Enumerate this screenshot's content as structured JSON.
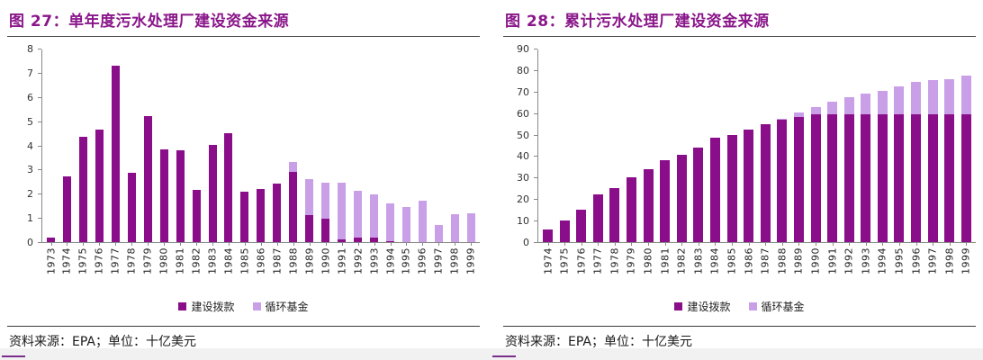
{
  "colors": {
    "grant_dark": "#8a0d8a",
    "fund_light": "#c9a0e8",
    "title_purple": "#8a168a",
    "footer_accent": "#7b2d8b"
  },
  "panels": [
    {
      "title": "图 27：单年度污水处理厂建设资金来源",
      "source": "资料来源：EPA；单位：十亿美元"
    },
    {
      "title": "图 28：累计污水处理厂建设资金来源",
      "source": "资料来源：EPA；单位：十亿美元"
    }
  ],
  "chart_data": [
    {
      "type": "bar",
      "stacked": true,
      "title": "单年度污水处理厂建设资金来源",
      "unit": "十亿美元",
      "source": "EPA",
      "grid": false,
      "legend_position": "bottom",
      "ylim": [
        0,
        8
      ],
      "ytick_step": 1,
      "categories": [
        "1973",
        "1974",
        "1975",
        "1976",
        "1977",
        "1978",
        "1979",
        "1980",
        "1981",
        "1982",
        "1983",
        "1984",
        "1985",
        "1986",
        "1987",
        "1988",
        "1989",
        "1990",
        "1991",
        "1992",
        "1993",
        "1994",
        "1995",
        "1996",
        "1997",
        "1998",
        "1999"
      ],
      "series": [
        {
          "name": "建设拨款",
          "color": "#8a0d8a",
          "values": [
            0.2,
            2.7,
            4.35,
            4.65,
            7.3,
            2.85,
            5.2,
            3.85,
            3.8,
            2.15,
            4.0,
            4.5,
            2.1,
            2.2,
            2.4,
            2.9,
            1.1,
            0.95,
            0.1,
            0.2,
            0.2,
            0.05,
            0,
            0,
            0,
            0,
            0
          ]
        },
        {
          "name": "循环基金",
          "color": "#c9a0e8",
          "values": [
            0,
            0,
            0,
            0,
            0,
            0,
            0,
            0,
            0,
            0,
            0,
            0,
            0,
            0,
            0,
            0.4,
            1.5,
            1.5,
            2.35,
            1.95,
            1.8,
            1.55,
            1.45,
            1.7,
            0.7,
            1.15,
            1.2
          ]
        }
      ]
    },
    {
      "type": "bar",
      "stacked": true,
      "title": "累计污水处理厂建设资金来源",
      "unit": "十亿美元",
      "source": "EPA",
      "grid": false,
      "legend_position": "bottom",
      "ylim": [
        0,
        90
      ],
      "ytick_step": 10,
      "categories": [
        "1974",
        "1975",
        "1976",
        "1977",
        "1978",
        "1979",
        "1980",
        "1981",
        "1982",
        "1983",
        "1984",
        "1985",
        "1986",
        "1987",
        "1988",
        "1989",
        "1990",
        "1991",
        "1992",
        "1993",
        "1994",
        "1995",
        "1996",
        "1997",
        "1998",
        "1999"
      ],
      "series": [
        {
          "name": "建设拨款",
          "color": "#8a0d8a",
          "values": [
            6,
            10,
            15,
            22,
            25,
            30,
            34,
            38,
            40.5,
            44,
            48.5,
            50,
            52.5,
            55,
            57,
            58,
            59.5,
            59.5,
            59.5,
            59.5,
            59.5,
            59.5,
            59.5,
            59.5,
            59.5,
            59.5
          ]
        },
        {
          "name": "循环基金",
          "color": "#c9a0e8",
          "values": [
            0,
            0,
            0,
            0,
            0,
            0,
            0,
            0,
            0,
            0,
            0,
            0,
            0,
            0,
            0.5,
            2,
            3.5,
            6,
            8,
            9.5,
            11,
            13,
            15,
            16,
            16.5,
            18
          ]
        }
      ]
    }
  ]
}
